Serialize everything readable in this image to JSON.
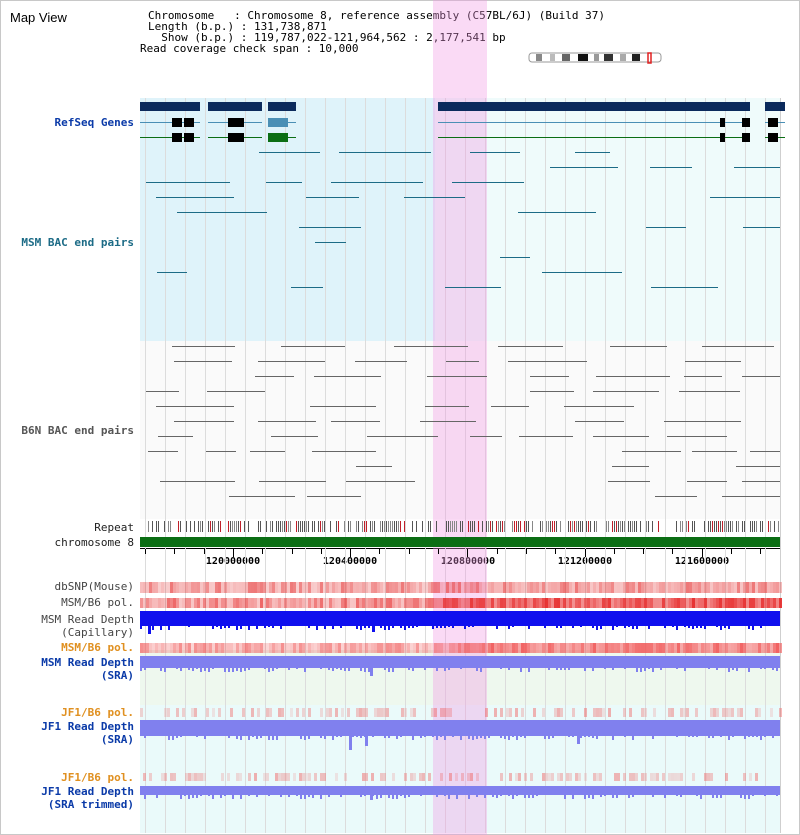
{
  "header": {
    "title": "Map View",
    "chromosome_line": "Chromosome   : Chromosome 8, reference assembly (C57BL/6J) (Build 37)",
    "length_line": "Length (b.p.) : 131,738,871",
    "show_line": "  Show (b.p.) : 119,787,022-121,964,562 : 2,177,541 bp",
    "coverage_line": "Read coverage check span : 10,000"
  },
  "tracks": {
    "refseq": "RefSeq Genes",
    "msm_bac": "MSM BAC end pairs",
    "b6n_bac": "B6N BAC end pairs",
    "repeat": "Repeat",
    "chromosome": "chromosome 8",
    "dbsnp": "dbSNP(Mouse)",
    "msm_b6_pol_1": "MSM/B6 pol.",
    "msm_depth_cap_1": "MSM Read Depth",
    "msm_depth_cap_2": "(Capillary)",
    "msm_b6_pol_2": "MSM/B6 pol.",
    "msm_depth_sra_1": "MSM Read Depth",
    "msm_depth_sra_2": "(SRA)",
    "jf1_b6_pol_1": "JF1/B6 pol.",
    "jf1_depth_sra_1": "JF1 Read Depth",
    "jf1_depth_sra_2": "(SRA)",
    "jf1_b6_pol_2": "JF1/B6 pol.",
    "jf1_depth_trim_1": "JF1 Read Depth",
    "jf1_depth_trim_2": "(SRA trimmed)"
  },
  "axis": {
    "ticks": [
      "120000000",
      "120400000",
      "120800000",
      "121200000",
      "121600000"
    ]
  },
  "colors": {
    "gene_dark": "#0b2a5c",
    "gene_mid": "#4a8fb5",
    "gene_green": "#0b6e14",
    "msm_bac": "#1c6b86",
    "b6n_bac": "#666666",
    "chromosome": "#0b6e14",
    "depth_msm_cap": "#1010ee",
    "depth_sra": "#8080ee",
    "highlight": "#f3c0ec"
  }
}
